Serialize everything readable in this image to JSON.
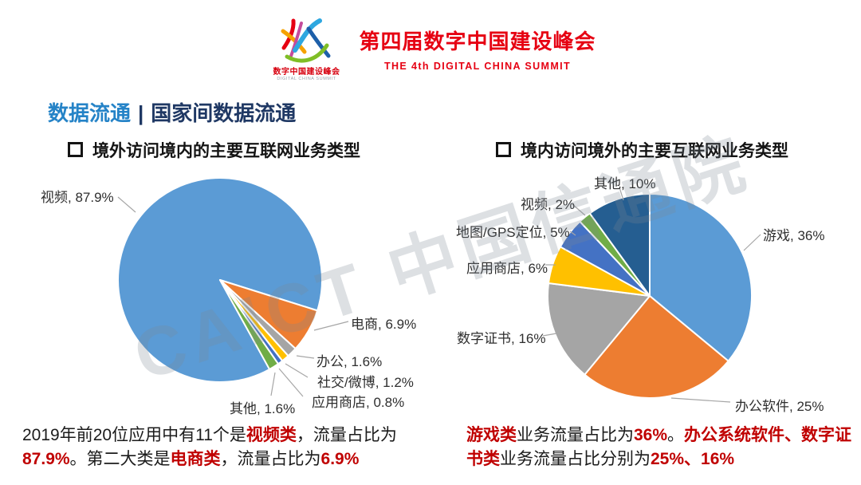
{
  "header": {
    "logo_cn": "数字中国建设峰会",
    "logo_en": "DIGITAL CHINA SUMMIT",
    "title_cn": "第四届数字中国建设峰会",
    "title_en": "THE 4th DIGITAL CHINA SUMMIT"
  },
  "slide_title": {
    "primary": "数据流通",
    "separator": "|",
    "secondary": "国家间数据流通"
  },
  "watermark": {
    "text": "CAICT 中国信通院"
  },
  "chart_data": [
    {
      "type": "pie",
      "title": "境外访问境内的主要互联网业务类型",
      "start_angle_deg": 151,
      "legend_position": "none",
      "slices": [
        {
          "label": "视频",
          "value": 87.9,
          "display": "视频, 87.9%",
          "color": "#5B9BD5"
        },
        {
          "label": "电商",
          "value": 6.9,
          "display": "电商, 6.9%",
          "color": "#ED7D31"
        },
        {
          "label": "办公",
          "value": 1.6,
          "display": "办公, 1.6%",
          "color": "#A5A5A5"
        },
        {
          "label": "社交/微博",
          "value": 1.2,
          "display": "社交/微博, 1.2%",
          "color": "#FFC000"
        },
        {
          "label": "应用商店",
          "value": 0.8,
          "display": "应用商店, 0.8%",
          "color": "#4472C4"
        },
        {
          "label": "其他",
          "value": 1.6,
          "display": "其他, 1.6%",
          "color": "#70AD47"
        }
      ]
    },
    {
      "type": "pie",
      "title": "境内访问境外的主要互联网业务类型",
      "start_angle_deg": 0,
      "legend_position": "none",
      "slices": [
        {
          "label": "游戏",
          "value": 36,
          "display": "游戏, 36%",
          "color": "#5B9BD5"
        },
        {
          "label": "办公软件",
          "value": 25,
          "display": "办公软件, 25%",
          "color": "#ED7D31"
        },
        {
          "label": "数字证书",
          "value": 16,
          "display": "数字证书, 16%",
          "color": "#A5A5A5"
        },
        {
          "label": "应用商店",
          "value": 6,
          "display": "应用商店, 6%",
          "color": "#FFC000"
        },
        {
          "label": "地图/GPS定位",
          "value": 5,
          "display": "地图/GPS定位, 5%",
          "color": "#4472C4"
        },
        {
          "label": "视频",
          "value": 2,
          "display": "视频, 2%",
          "color": "#70AD47"
        },
        {
          "label": "其他",
          "value": 10,
          "display": "其他, 10%",
          "color": "#255E91"
        }
      ]
    }
  ],
  "notes": {
    "left": {
      "s0": "2019年前20位应用中有11个是",
      "s1": "视频类",
      "s2": "，流量占比为",
      "s3": "87.9%",
      "s4": "。第二大类是",
      "s5": "电商类",
      "s6": "，流量占比为",
      "s7": "6.9%"
    },
    "right": {
      "s0": "游戏类",
      "s1": "业务流量占比为",
      "s2": "36%",
      "s3": "。",
      "s4": "办公系统软件、数字证书类",
      "s5": "业务流量占比分别为",
      "s6": "25%、16%"
    }
  },
  "colors": {
    "header_red": "#E60012",
    "note_red": "#C00000",
    "title_blue": "#2583C7",
    "title_navy": "#1F3864",
    "leader_gray": "#A6A6A6"
  }
}
